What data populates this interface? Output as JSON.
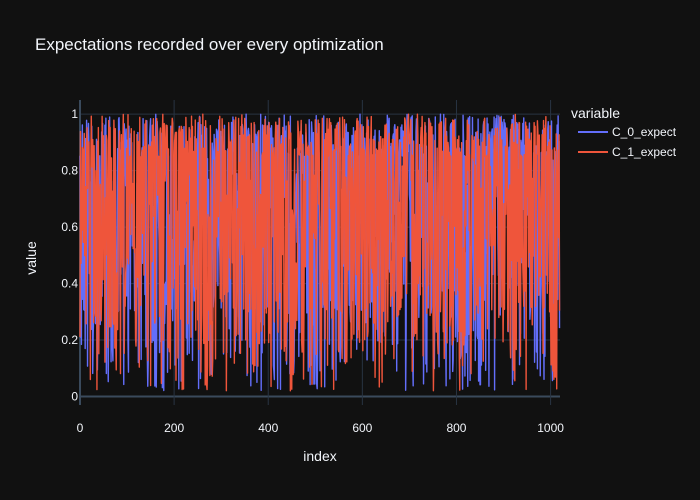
{
  "chart_data": {
    "type": "line",
    "title": "Expectations recorded over every optimization",
    "xlabel": "index",
    "ylabel": "value",
    "xlim": [
      0,
      1020
    ],
    "ylim": [
      -0.03,
      1.05
    ],
    "x_ticks": [
      0,
      200,
      400,
      600,
      800,
      1000
    ],
    "x_tick_labels": [
      "0",
      "200",
      "400",
      "600",
      "800",
      "1000"
    ],
    "y_ticks": [
      0,
      0.2,
      0.4,
      0.6,
      0.8,
      1
    ],
    "y_tick_labels": [
      "0",
      "0.2",
      "0.4",
      "0.6",
      "0.8",
      "1"
    ],
    "grid": true,
    "legend": {
      "title": "variable",
      "placement": "right"
    },
    "n_points": 1020,
    "series": [
      {
        "name": "C_0_expect",
        "color": "#636efa",
        "min": 0.02,
        "max": 1.0,
        "mean": 0.6,
        "x": [
          0,
          5,
          10,
          20,
          30,
          40,
          50,
          60,
          70,
          80,
          100,
          150,
          200,
          250,
          300,
          350,
          400,
          450,
          500,
          550,
          600,
          650,
          700,
          750,
          800,
          850,
          900,
          950,
          1000,
          1019
        ],
        "values": [
          0.8,
          0.95,
          0.7,
          0.98,
          0.3,
          0.95,
          0.2,
          0.05,
          0.97,
          0.1,
          0.9,
          0.15,
          0.98,
          0.08,
          0.95,
          0.05,
          0.92,
          0.1,
          0.97,
          0.12,
          0.96,
          0.07,
          0.98,
          0.1,
          0.95,
          0.05,
          0.97,
          0.08,
          0.98,
          0.9
        ]
      },
      {
        "name": "C_1_expect",
        "color": "#ef553b",
        "min": 0.02,
        "max": 1.0,
        "mean": 0.6,
        "x": [
          0,
          5,
          10,
          20,
          30,
          40,
          50,
          60,
          70,
          80,
          100,
          150,
          200,
          250,
          300,
          350,
          400,
          450,
          500,
          550,
          600,
          650,
          700,
          750,
          800,
          850,
          900,
          950,
          1000,
          1019
        ],
        "values": [
          0.65,
          0.3,
          0.9,
          0.1,
          0.97,
          0.2,
          0.95,
          0.02,
          0.15,
          0.98,
          0.3,
          0.96,
          0.2,
          0.95,
          0.25,
          0.98,
          0.2,
          0.97,
          0.3,
          0.95,
          0.2,
          0.98,
          0.25,
          0.96,
          0.2,
          0.97,
          0.3,
          0.95,
          0.2,
          0.5
        ]
      }
    ]
  }
}
